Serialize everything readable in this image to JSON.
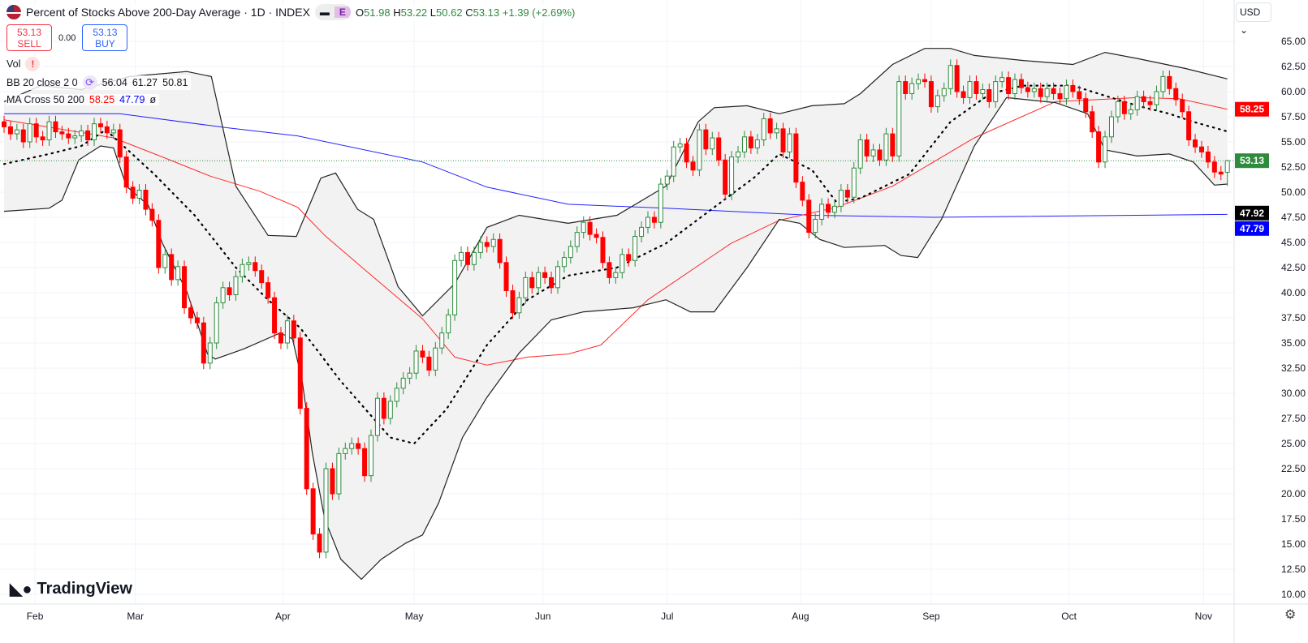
{
  "header": {
    "title": "Percent of Stocks Above 200-Day Average · 1D · INDEX",
    "flag_icon": "us-flag-icon",
    "badge": "E",
    "open_label": "O",
    "open": "51.98",
    "high_label": "H",
    "high": "53.22",
    "low_label": "L",
    "low": "50.62",
    "close_label": "C",
    "close": "53.13",
    "change": "+1.39 (+2.69%)"
  },
  "trade": {
    "sell_price": "53.13",
    "sell_label": "SELL",
    "spread": "0.00",
    "buy_price": "53.13",
    "buy_label": "BUY"
  },
  "indicators": {
    "vol_label": "Vol",
    "vol_warning": "!",
    "bb_label": "BB 20 close 2 0",
    "bb_mid": "56.04",
    "bb_upper": "61.27",
    "bb_lower": "50.81",
    "ma_label": "MA Cross 50 200",
    "ma50": "58.25",
    "ma200": "47.79",
    "ma_extra": "ø"
  },
  "currency": "USD",
  "logo": "TradingView",
  "colors": {
    "up": "#2e8b3e",
    "down": "#ff0000",
    "ma50": "#ff2a2a",
    "ma200": "#2222ff",
    "band": "#222222",
    "fill": "#f2f2f2"
  },
  "chart_data": {
    "type": "candlestick",
    "title": "Percent of Stocks Above 200-Day Average",
    "ylim": [
      10,
      65
    ],
    "y_ticks": [
      "65.00",
      "62.50",
      "60.00",
      "57.50",
      "55.00",
      "52.50",
      "50.00",
      "47.50",
      "45.00",
      "42.50",
      "40.00",
      "37.50",
      "35.00",
      "32.50",
      "30.00",
      "27.50",
      "25.00",
      "22.50",
      "20.00",
      "17.50",
      "15.00",
      "12.50",
      "10.00"
    ],
    "x_ticks": [
      {
        "label": "Feb",
        "day": 4.8
      },
      {
        "label": "Mar",
        "day": 20.4
      },
      {
        "label": "Apr",
        "day": 43.3
      },
      {
        "label": "May",
        "day": 63.7
      },
      {
        "label": "Jun",
        "day": 83.7
      },
      {
        "label": "Jul",
        "day": 103
      },
      {
        "label": "Aug",
        "day": 123.7
      },
      {
        "label": "Sep",
        "day": 144
      },
      {
        "label": "Oct",
        "day": 165.4
      },
      {
        "label": "Nov",
        "day": 186.3
      }
    ],
    "last_candle": {
      "open": 51.98,
      "high": 53.22,
      "low": 50.62,
      "close": 53.13
    },
    "closes": [
      56.5,
      55.8,
      56.2,
      55,
      56.8,
      55.5,
      55.2,
      57,
      56,
      55.8,
      55.4,
      55.6,
      56.1,
      55.2,
      56.8,
      56.5,
      55.9,
      56.2,
      53.5,
      50.5,
      49.4,
      50.2,
      48.3,
      47.2,
      42.5,
      43.8,
      41.3,
      42.6,
      38.5,
      37.5,
      37.0,
      33.0,
      35.0,
      39.0,
      40.5,
      39.8,
      41.6,
      42.8,
      43.0,
      42.2,
      41.0,
      39.5,
      36.0,
      35.0,
      37.2,
      35.5,
      28.5,
      20.5,
      16.0,
      14.2,
      22.5,
      20.0,
      24.0,
      24.5,
      25.0,
      24.5,
      21.8,
      25.8,
      29.5,
      27.5,
      29.2,
      30.5,
      31.5,
      32.0,
      34.2,
      33.6,
      32.3,
      34.5,
      36.0,
      37.8,
      43.2,
      44.0,
      42.8,
      44.0,
      45.0,
      44.6,
      45.3,
      43.0,
      40.2,
      38.0,
      39.5,
      41.5,
      40.5,
      42.0,
      41.5,
      40.5,
      42.6,
      43.5,
      44.6,
      46.0,
      47.0,
      45.8,
      45.5,
      43.0,
      41.5,
      42.0,
      43.8,
      43.2,
      45.6,
      46.5,
      47.5,
      47.0,
      50.8,
      51.6,
      54.5,
      54.8,
      53.0,
      52.2,
      56.2,
      54.3,
      55.4,
      53.2,
      49.8,
      53.5,
      54.0,
      55.5,
      54.4,
      55.2,
      57.3,
      55.9,
      56.3,
      54.0,
      55.8,
      51.0,
      49.2,
      46.0,
      47.3,
      48.8,
      48.0,
      48.6,
      50.2,
      49.5,
      52.4,
      55.2,
      53.6,
      54.2,
      53.2,
      55.8,
      53.6,
      61.0,
      59.8,
      60.8,
      61.2,
      61.0,
      58.5,
      59.6,
      60.3,
      62.6,
      60.0,
      59.4,
      61.0,
      59.8,
      60.2,
      59.0,
      61.0,
      61.4,
      59.8,
      61.2,
      60.4,
      60.0,
      60.3,
      59.5,
      60.3,
      59.8,
      59.3,
      60.6,
      60.0,
      59.3,
      58.0,
      56.0,
      53.0,
      55.5,
      57.5,
      59.0,
      57.8,
      58.2,
      59.5,
      59.0,
      58.7,
      60.0,
      61.5,
      60.3,
      59.2,
      58.0,
      55.2,
      54.5,
      54.0,
      53.0,
      52.0,
      51.8,
      53.13
    ],
    "series": [
      {
        "name": "BB upper",
        "points": [
          [
            0,
            59
          ],
          [
            5.7,
            60.6
          ],
          [
            12,
            60.2
          ],
          [
            19.5,
            61.5
          ],
          [
            28.4,
            62
          ],
          [
            32.2,
            61.5
          ],
          [
            36,
            50.6
          ],
          [
            41,
            45.7
          ],
          [
            45.4,
            45.6
          ],
          [
            49.2,
            51.4
          ],
          [
            51.5,
            51.9
          ],
          [
            54.9,
            48.3
          ],
          [
            57.4,
            47.3
          ],
          [
            61.2,
            40.6
          ],
          [
            65,
            37.7
          ],
          [
            70,
            40.9
          ],
          [
            75,
            46.5
          ],
          [
            80,
            47.7
          ],
          [
            87.6,
            46.9
          ],
          [
            95.2,
            47.7
          ],
          [
            102.8,
            50.6
          ],
          [
            107.8,
            57
          ],
          [
            110.3,
            58.4
          ],
          [
            115.4,
            58.6
          ],
          [
            120.4,
            57.8
          ],
          [
            125.5,
            58.6
          ],
          [
            130.5,
            58.8
          ],
          [
            133,
            59.8
          ],
          [
            138,
            62.7
          ],
          [
            143,
            64.3
          ],
          [
            147,
            64.3
          ],
          [
            150.7,
            63.6
          ],
          [
            158.3,
            63.1
          ],
          [
            166,
            62.7
          ],
          [
            171,
            63.9
          ],
          [
            176,
            63.3
          ],
          [
            183.5,
            62.3
          ],
          [
            190,
            61.27
          ]
        ]
      },
      {
        "name": "BB lower",
        "points": [
          [
            0,
            48.1
          ],
          [
            7,
            48.4
          ],
          [
            9,
            49.2
          ],
          [
            11.6,
            53.2
          ],
          [
            15,
            54.6
          ],
          [
            17,
            54.4
          ],
          [
            19,
            50.6
          ],
          [
            22.4,
            48.7
          ],
          [
            24.6,
            44.9
          ],
          [
            28.4,
            40.1
          ],
          [
            31.6,
            33.9
          ],
          [
            32.8,
            33.4
          ],
          [
            37.2,
            34.4
          ],
          [
            42.9,
            36
          ],
          [
            44.8,
            35.4
          ],
          [
            46.3,
            31.2
          ],
          [
            47.9,
            24
          ],
          [
            49.8,
            17.5
          ],
          [
            52.3,
            13.5
          ],
          [
            55.5,
            11.5
          ],
          [
            58.6,
            13.5
          ],
          [
            62.4,
            15.1
          ],
          [
            65,
            15.9
          ],
          [
            67.5,
            19.1
          ],
          [
            71.2,
            25.6
          ],
          [
            75,
            29.6
          ],
          [
            80,
            34
          ],
          [
            85,
            37.3
          ],
          [
            90,
            38.1
          ],
          [
            97.7,
            38.5
          ],
          [
            102.8,
            39.3
          ],
          [
            106.6,
            38.1
          ],
          [
            110.3,
            38.1
          ],
          [
            115.4,
            42.5
          ],
          [
            120.4,
            47.3
          ],
          [
            123.6,
            46.9
          ],
          [
            126.7,
            45.3
          ],
          [
            130.5,
            44.5
          ],
          [
            136.8,
            44.7
          ],
          [
            139.3,
            43.7
          ],
          [
            141.9,
            43.5
          ],
          [
            145.6,
            47.3
          ],
          [
            150.7,
            54.6
          ],
          [
            155.7,
            59.4
          ],
          [
            163.3,
            58.9
          ],
          [
            168.3,
            57.8
          ],
          [
            171,
            54.2
          ],
          [
            176,
            53.6
          ],
          [
            181,
            53.8
          ],
          [
            184.7,
            53
          ],
          [
            188,
            50.7
          ],
          [
            190,
            50.81
          ]
        ]
      },
      {
        "name": "BB basis",
        "points": [
          [
            0,
            52.8
          ],
          [
            7,
            53.8
          ],
          [
            12,
            54.6
          ],
          [
            15.8,
            56.2
          ],
          [
            23.3,
            51.8
          ],
          [
            29.6,
            47.7
          ],
          [
            36,
            42.5
          ],
          [
            41,
            39.3
          ],
          [
            46,
            36.5
          ],
          [
            52.3,
            31.2
          ],
          [
            60,
            25.6
          ],
          [
            63.7,
            25
          ],
          [
            68.7,
            28.4
          ],
          [
            75,
            34.8
          ],
          [
            81.3,
            39.3
          ],
          [
            87.6,
            41.7
          ],
          [
            95.2,
            42.5
          ],
          [
            102.8,
            44.9
          ],
          [
            110.3,
            48.5
          ],
          [
            116.6,
            51.5
          ],
          [
            120.4,
            53.8
          ],
          [
            125.5,
            52.2
          ],
          [
            129.3,
            49
          ],
          [
            133,
            49.4
          ],
          [
            140.6,
            51.8
          ],
          [
            147,
            57
          ],
          [
            153.2,
            59.8
          ],
          [
            158.3,
            60.6
          ],
          [
            166,
            60.6
          ],
          [
            171,
            59.6
          ],
          [
            176,
            58.6
          ],
          [
            181,
            57.8
          ],
          [
            184.7,
            57
          ],
          [
            190,
            56.04
          ]
        ]
      },
      {
        "name": "MA 50",
        "points": [
          [
            0,
            57.2
          ],
          [
            17,
            55.4
          ],
          [
            24.6,
            53.5
          ],
          [
            32,
            51.6
          ],
          [
            39.7,
            50.1
          ],
          [
            45.6,
            48.5
          ],
          [
            49.8,
            45.7
          ],
          [
            56,
            42.3
          ],
          [
            65,
            37.4
          ],
          [
            70,
            33.6
          ],
          [
            75,
            32.8
          ],
          [
            81.3,
            33.6
          ],
          [
            87.6,
            33.9
          ],
          [
            92.7,
            34.8
          ],
          [
            100,
            39.3
          ],
          [
            112.9,
            44.9
          ],
          [
            120.4,
            47.2
          ],
          [
            129.3,
            48.5
          ],
          [
            138,
            50.6
          ],
          [
            150.7,
            55.4
          ],
          [
            163.3,
            59
          ],
          [
            176,
            59.4
          ],
          [
            182.5,
            59.3
          ],
          [
            190,
            58.25
          ]
        ]
      },
      {
        "name": "MA 200",
        "points": [
          [
            0,
            57.8
          ],
          [
            18,
            57.8
          ],
          [
            34.7,
            56.4
          ],
          [
            45.6,
            55.6
          ],
          [
            65,
            53
          ],
          [
            75,
            50.5
          ],
          [
            87.6,
            48.8
          ],
          [
            102.8,
            48.4
          ],
          [
            125.5,
            47.7
          ],
          [
            144.4,
            47.5
          ],
          [
            176,
            47.7
          ],
          [
            190,
            47.79
          ]
        ]
      }
    ],
    "price_labels": [
      {
        "value": "58.25",
        "color": "#ff0000",
        "level": 58.25
      },
      {
        "value": "53.13",
        "color": "#2e8b3e",
        "level": 53.13
      },
      {
        "value": "47.92",
        "color": "#000000",
        "level": 47.92
      },
      {
        "value": "47.79",
        "color": "#0000ff",
        "level": 47.79
      }
    ]
  }
}
